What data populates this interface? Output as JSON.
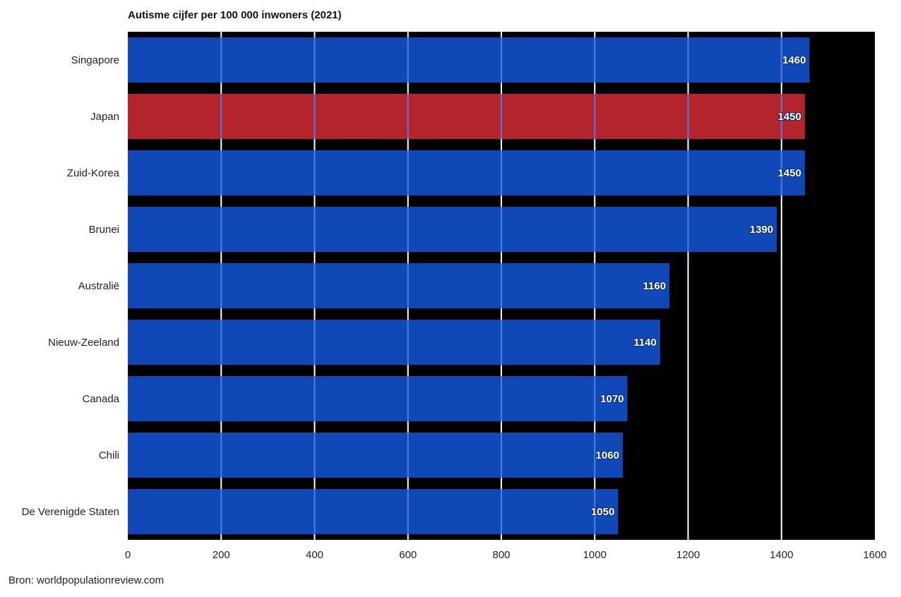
{
  "title": "Autisme cijfer per 100 000 inwoners (2021)",
  "source": "Bron: worldpopulationreview.com",
  "colors": {
    "bar": "#1148b8",
    "highlight": "#b3242c",
    "plot_background": "#000000",
    "grid": "#ffffff",
    "grid_over_bar": "#4d7fe0"
  },
  "chart_data": {
    "type": "bar",
    "orientation": "horizontal",
    "title": "Autisme cijfer per 100 000 inwoners (2021)",
    "categories": [
      "Singapore",
      "Japan",
      "Zuid-Korea",
      "Brunei",
      "Australië",
      "Nieuw-Zeeland",
      "Canada",
      "Chili",
      "De Verenigde Staten"
    ],
    "values": [
      1460,
      1450,
      1450,
      1390,
      1160,
      1140,
      1070,
      1060,
      1050
    ],
    "value_labels": [
      "1460",
      "1450",
      "1450",
      "1390",
      "1160",
      "1140",
      "1070",
      "1060",
      "1050"
    ],
    "highlighted": [
      "Japan"
    ],
    "xlim": [
      0,
      1600
    ],
    "xticks": [
      0,
      200,
      400,
      600,
      800,
      1000,
      1200,
      1400,
      1600
    ],
    "xtick_labels": [
      "0",
      "200",
      "400",
      "600",
      "800",
      "1000",
      "1200",
      "1400",
      "1600"
    ],
    "grid": true,
    "xlabel": "",
    "ylabel": ""
  }
}
